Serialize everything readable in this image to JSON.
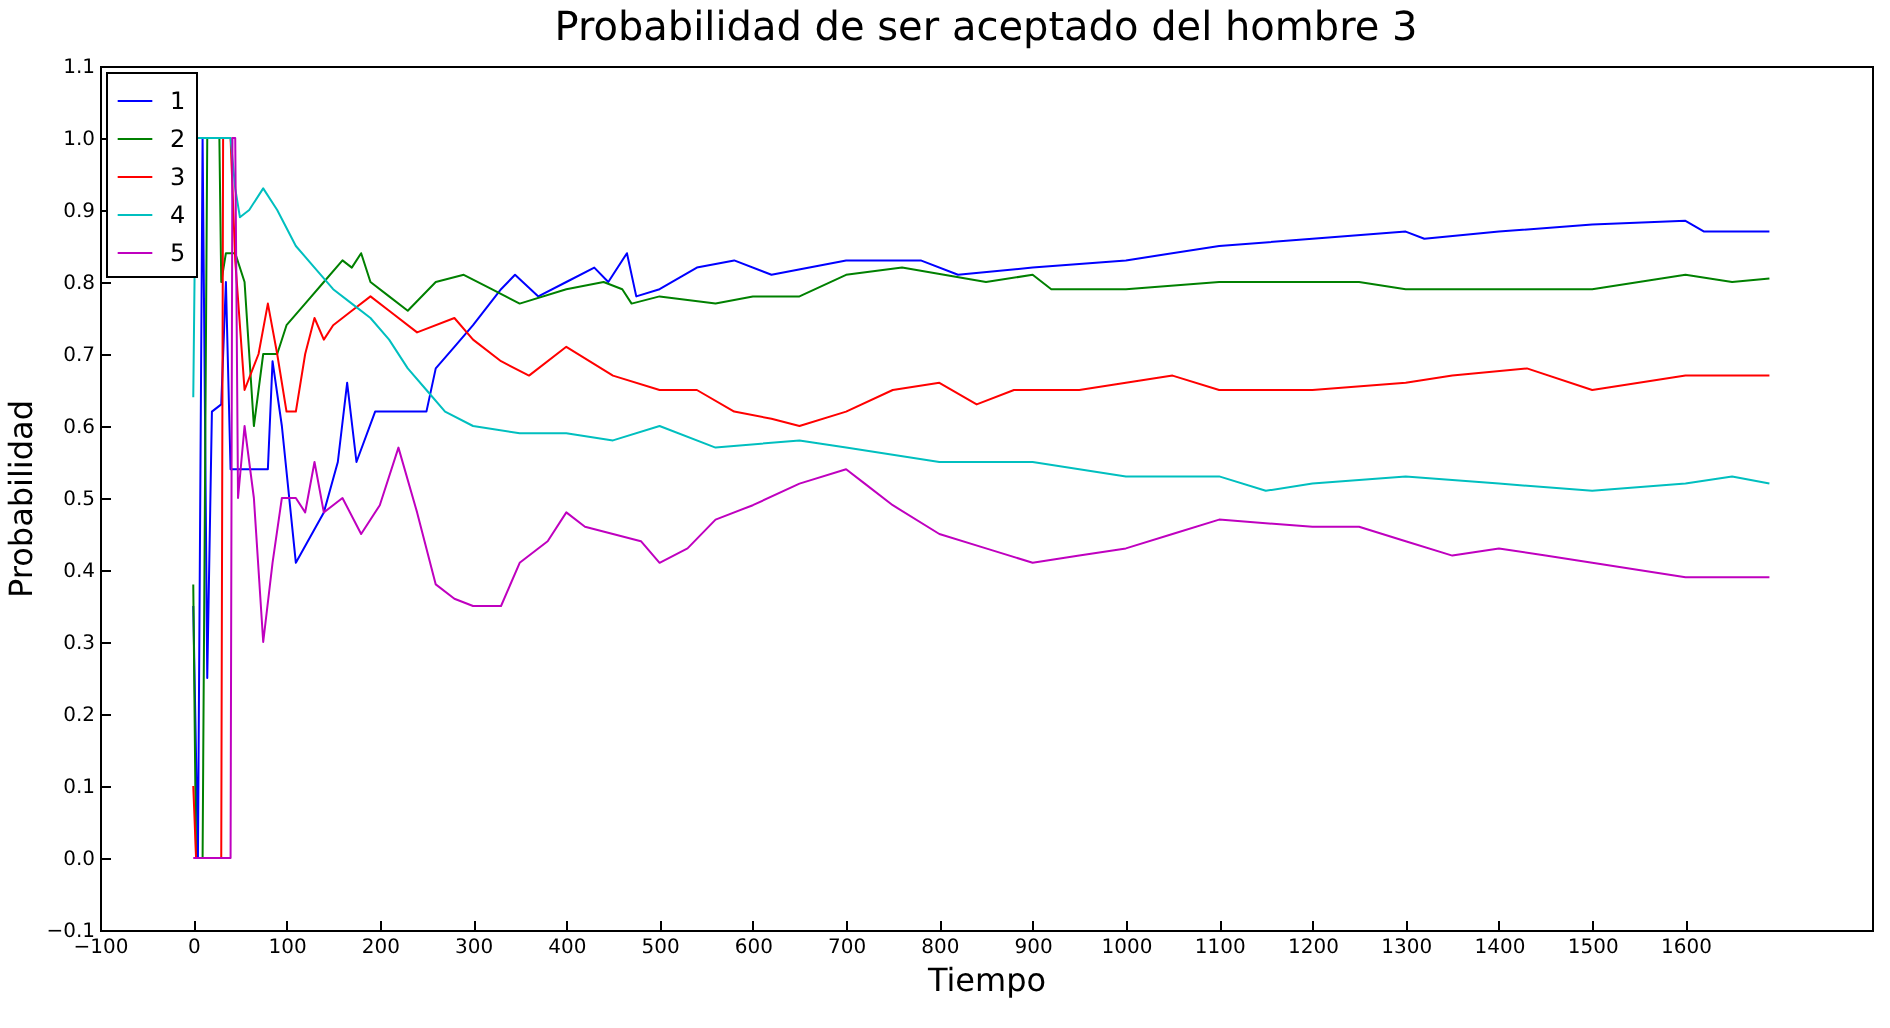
{
  "chart_data": {
    "type": "line",
    "title": "Probabilidad de ser aceptado del hombre  3",
    "xlabel": "Tiempo",
    "ylabel": "Probabilidad",
    "xlim": [
      -100,
      1800
    ],
    "xticks": [
      -100,
      0,
      100,
      200,
      300,
      400,
      500,
      600,
      700,
      800,
      900,
      1000,
      1100,
      1200,
      1300,
      1400,
      1500,
      1600
    ],
    "ylim": [
      -0.1,
      1.1
    ],
    "yticks": [
      -0.1,
      {
        "value": 0,
        "label": "0.0"
      },
      0.1,
      0.2,
      0.3,
      0.4,
      0.5,
      0.6,
      0.7,
      0.8,
      0.9,
      {
        "value": 1,
        "label": "1.0"
      },
      1.1
    ],
    "legend": "top left",
    "grid": false,
    "series": [
      {
        "name": "1",
        "color": "#0000ff",
        "x": [
          0,
          5,
          10,
          15,
          20,
          30,
          35,
          40,
          80,
          85,
          95,
          110,
          140,
          155,
          165,
          175,
          195,
          250,
          260,
          280,
          300,
          330,
          345,
          370,
          400,
          430,
          445,
          465,
          475,
          500,
          540,
          580,
          620,
          700,
          780,
          820,
          900,
          1000,
          1100,
          1200,
          1300,
          1320,
          1400,
          1500,
          1600,
          1620,
          1690
        ],
        "values": [
          0.35,
          0,
          1.0,
          0.25,
          0.62,
          0.63,
          0.8,
          0.54,
          0.54,
          0.69,
          0.6,
          0.41,
          0.48,
          0.55,
          0.66,
          0.55,
          0.62,
          0.62,
          0.68,
          0.71,
          0.74,
          0.79,
          0.81,
          0.78,
          0.8,
          0.82,
          0.8,
          0.84,
          0.78,
          0.79,
          0.82,
          0.83,
          0.81,
          0.83,
          0.83,
          0.81,
          0.82,
          0.83,
          0.85,
          0.86,
          0.87,
          0.86,
          0.87,
          0.88,
          0.885,
          0.87,
          0.87
        ]
      },
      {
        "name": "2",
        "color": "#008000",
        "x": [
          0,
          3,
          10,
          15,
          28,
          30,
          35,
          45,
          55,
          65,
          75,
          90,
          100,
          120,
          140,
          160,
          170,
          180,
          190,
          210,
          230,
          260,
          290,
          320,
          350,
          400,
          440,
          460,
          470,
          500,
          560,
          600,
          650,
          700,
          760,
          850,
          900,
          920,
          1000,
          1100,
          1200,
          1250,
          1300,
          1400,
          1500,
          1600,
          1650,
          1690
        ],
        "values": [
          0.38,
          0,
          0,
          1.0,
          1.0,
          0.8,
          0.84,
          0.84,
          0.8,
          0.6,
          0.7,
          0.7,
          0.74,
          0.77,
          0.8,
          0.83,
          0.82,
          0.84,
          0.8,
          0.78,
          0.76,
          0.8,
          0.81,
          0.79,
          0.77,
          0.79,
          0.8,
          0.79,
          0.77,
          0.78,
          0.77,
          0.78,
          0.78,
          0.81,
          0.82,
          0.8,
          0.81,
          0.79,
          0.79,
          0.8,
          0.8,
          0.8,
          0.79,
          0.79,
          0.79,
          0.81,
          0.8,
          0.805
        ]
      },
      {
        "name": "3",
        "color": "#ff0000",
        "x": [
          0,
          3,
          30,
          32,
          40,
          45,
          55,
          70,
          80,
          90,
          100,
          110,
          120,
          130,
          140,
          150,
          170,
          190,
          210,
          240,
          280,
          300,
          330,
          360,
          400,
          450,
          500,
          540,
          580,
          620,
          650,
          700,
          750,
          800,
          840,
          880,
          950,
          1000,
          1050,
          1100,
          1200,
          1300,
          1350,
          1430,
          1500,
          1600,
          1690
        ],
        "values": [
          0.1,
          0,
          0,
          1.0,
          1.0,
          0.83,
          0.65,
          0.7,
          0.77,
          0.7,
          0.62,
          0.62,
          0.7,
          0.75,
          0.72,
          0.74,
          0.76,
          0.78,
          0.76,
          0.73,
          0.75,
          0.72,
          0.69,
          0.67,
          0.71,
          0.67,
          0.65,
          0.65,
          0.62,
          0.61,
          0.6,
          0.62,
          0.65,
          0.66,
          0.63,
          0.65,
          0.65,
          0.66,
          0.67,
          0.65,
          0.65,
          0.66,
          0.67,
          0.68,
          0.65,
          0.67,
          0.67
        ]
      },
      {
        "name": "4",
        "color": "#00bfbf",
        "x": [
          0,
          3,
          40,
          45,
          50,
          60,
          75,
          90,
          110,
          130,
          150,
          170,
          190,
          210,
          230,
          250,
          270,
          300,
          350,
          400,
          450,
          500,
          560,
          650,
          700,
          800,
          900,
          1000,
          1100,
          1150,
          1200,
          1300,
          1400,
          1500,
          1600,
          1650,
          1690
        ],
        "values": [
          0.64,
          1.0,
          1.0,
          0.93,
          0.89,
          0.9,
          0.93,
          0.9,
          0.85,
          0.82,
          0.79,
          0.77,
          0.75,
          0.72,
          0.68,
          0.65,
          0.62,
          0.6,
          0.59,
          0.59,
          0.58,
          0.6,
          0.57,
          0.58,
          0.57,
          0.55,
          0.55,
          0.53,
          0.53,
          0.51,
          0.52,
          0.53,
          0.52,
          0.51,
          0.52,
          0.53,
          0.52
        ]
      },
      {
        "name": "5",
        "color": "#bf00bf",
        "x": [
          0,
          40,
          42,
          45,
          48,
          55,
          65,
          75,
          85,
          95,
          110,
          120,
          130,
          140,
          160,
          180,
          200,
          220,
          240,
          260,
          280,
          300,
          330,
          350,
          380,
          400,
          420,
          450,
          480,
          500,
          530,
          560,
          600,
          650,
          700,
          720,
          750,
          800,
          850,
          900,
          950,
          1000,
          1050,
          1100,
          1200,
          1250,
          1300,
          1350,
          1400,
          1450,
          1500,
          1600,
          1690
        ],
        "values": [
          0,
          0,
          1.0,
          1.0,
          0.5,
          0.6,
          0.5,
          0.3,
          0.41,
          0.5,
          0.5,
          0.48,
          0.55,
          0.48,
          0.5,
          0.45,
          0.49,
          0.57,
          0.48,
          0.38,
          0.36,
          0.35,
          0.35,
          0.41,
          0.44,
          0.48,
          0.46,
          0.45,
          0.44,
          0.41,
          0.43,
          0.47,
          0.49,
          0.52,
          0.54,
          0.52,
          0.49,
          0.45,
          0.43,
          0.41,
          0.42,
          0.43,
          0.45,
          0.47,
          0.46,
          0.46,
          0.44,
          0.42,
          0.43,
          0.42,
          0.41,
          0.39,
          0.39
        ]
      }
    ]
  }
}
